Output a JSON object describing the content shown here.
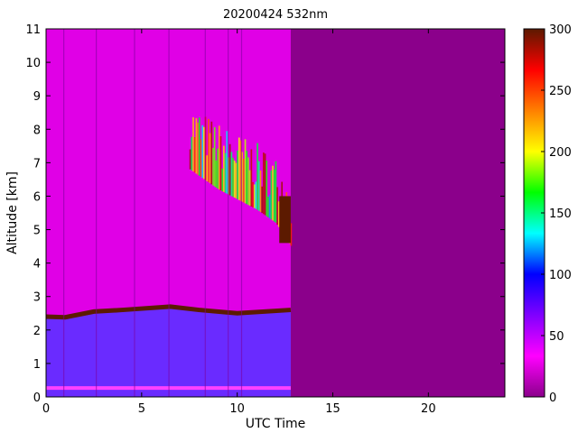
{
  "chart_data": {
    "type": "heatmap",
    "title": "20200424 532nm",
    "xlabel": "UTC Time",
    "ylabel": "Altitude [km]",
    "xlim": [
      0,
      24
    ],
    "ylim": [
      0,
      11
    ],
    "xticks": [
      0,
      5,
      10,
      15,
      20
    ],
    "yticks": [
      0,
      1,
      2,
      3,
      4,
      5,
      6,
      7,
      8,
      9,
      10,
      11
    ],
    "colorbar": {
      "min": 0,
      "max": 300,
      "ticks": [
        0,
        50,
        100,
        150,
        200,
        250,
        300
      ],
      "colormap": "nipy_spectral_like",
      "stops": [
        "#8b008b",
        "#ff00ff",
        "#8000ff",
        "#0000ff",
        "#00ffff",
        "#00ff00",
        "#ffff00",
        "#ff8000",
        "#ff0000",
        "#5c1a00"
      ]
    },
    "data_end_time": 12.8,
    "features": {
      "boundary_layer_top_km": [
        {
          "t": 0.0,
          "alt": 2.4
        },
        {
          "t": 1.0,
          "alt": 2.38
        },
        {
          "t": 2.5,
          "alt": 2.55
        },
        {
          "t": 4.0,
          "alt": 2.6
        },
        {
          "t": 6.5,
          "alt": 2.7
        },
        {
          "t": 8.0,
          "alt": 2.6
        },
        {
          "t": 10.0,
          "alt": 2.5
        },
        {
          "t": 12.8,
          "alt": 2.6
        }
      ],
      "cloud_base_km": [
        {
          "t": 7.5,
          "alt": 6.8
        },
        {
          "t": 9.0,
          "alt": 6.2
        },
        {
          "t": 10.0,
          "alt": 5.9
        },
        {
          "t": 11.0,
          "alt": 5.6
        },
        {
          "t": 12.0,
          "alt": 5.2
        },
        {
          "t": 12.8,
          "alt": 4.5
        }
      ],
      "noise_floor_value": 10,
      "boundary_layer_value": 40,
      "aerosol_layer_value": 20
    },
    "colors": {
      "no_data": "#8b008b",
      "boundary_layer": "#6a2bff",
      "upper_troposphere": "#e000e6"
    }
  }
}
